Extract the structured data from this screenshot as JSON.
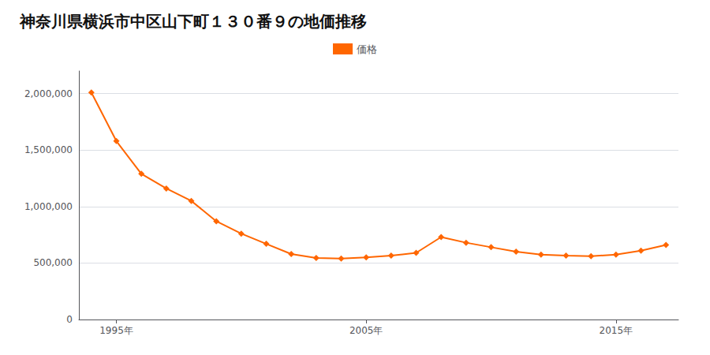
{
  "chart_data": {
    "type": "line",
    "title": "神奈川県横浜市中区山下町１３０番９の地価推移",
    "x": [
      1994,
      1995,
      1996,
      1997,
      1998,
      1999,
      2000,
      2001,
      2002,
      2003,
      2004,
      2005,
      2006,
      2007,
      2008,
      2009,
      2010,
      2011,
      2012,
      2013,
      2014,
      2015,
      2016,
      2017
    ],
    "series": [
      {
        "name": "価格",
        "color": "#FF6600",
        "marker": "diamond",
        "values": [
          2010000,
          1580000,
          1290000,
          1160000,
          1050000,
          870000,
          760000,
          670000,
          580000,
          545000,
          540000,
          550000,
          565000,
          590000,
          730000,
          680000,
          640000,
          600000,
          575000,
          565000,
          560000,
          575000,
          610000,
          660000
        ]
      }
    ],
    "xlim": [
      1993.5,
      2017.5
    ],
    "xticks": [
      {
        "value": 1995,
        "label": "1995年"
      },
      {
        "value": 2005,
        "label": "2005年"
      },
      {
        "value": 2015,
        "label": "2015年"
      }
    ],
    "ylim": [
      0,
      2200000
    ],
    "yticks": [
      0,
      {
        "value": 500000,
        "label": "500,000"
      },
      {
        "value": 1000000,
        "label": "1,000,000"
      },
      {
        "value": 1500000,
        "label": "1,500,000"
      },
      {
        "value": 2000000,
        "label": "2,000,000"
      }
    ],
    "grid": true,
    "legend": "top"
  }
}
